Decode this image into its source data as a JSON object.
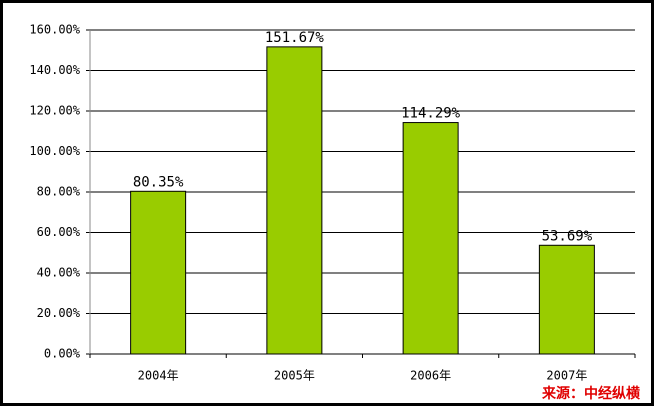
{
  "chart_data": {
    "type": "bar",
    "categories": [
      "2004年",
      "2005年",
      "2006年",
      "2007年"
    ],
    "values": [
      80.35,
      151.67,
      114.29,
      53.69
    ],
    "value_labels": [
      "80.35%",
      "151.67%",
      "114.29%",
      "53.69%"
    ],
    "color": "#99cc00",
    "ylim": [
      0,
      160
    ],
    "yticks": [
      {
        "value": 0,
        "label": "0.00%"
      },
      {
        "value": 20,
        "label": "20.00%"
      },
      {
        "value": 40,
        "label": "40.00%"
      },
      {
        "value": 60,
        "label": "60.00%"
      },
      {
        "value": 80,
        "label": "80.00%"
      },
      {
        "value": 100,
        "label": "100.00%"
      },
      {
        "value": 120,
        "label": "120.00%"
      },
      {
        "value": 140,
        "label": "140.00%"
      },
      {
        "value": 160,
        "label": "160.00%"
      }
    ],
    "grid": true,
    "annotation": "来源：中经纵横"
  }
}
